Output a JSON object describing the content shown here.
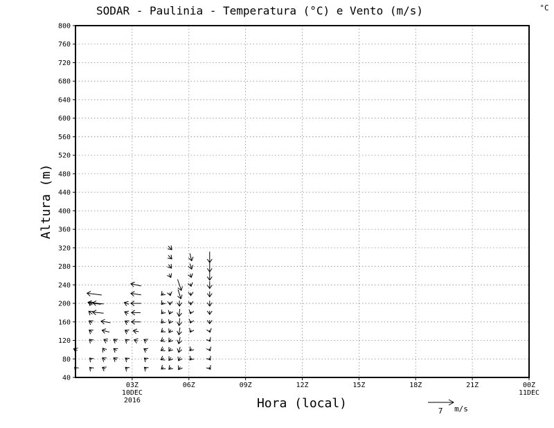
{
  "chart_data": {
    "type": "vector",
    "title": "SODAR - Paulinia - Temperatura (°C) e Vento (m/s)",
    "corner_unit": "°C",
    "xlabel": "Hora (local)",
    "ylabel": "Altura (m)",
    "xlim_hours": [
      0,
      24
    ],
    "ylim": [
      40,
      800
    ],
    "y_ticks": [
      40,
      80,
      120,
      160,
      200,
      240,
      280,
      320,
      360,
      400,
      440,
      480,
      520,
      560,
      600,
      640,
      680,
      720,
      760,
      800
    ],
    "y_tick_labels": [
      "40",
      "80",
      "120",
      "160",
      "200",
      "240",
      "280",
      "320",
      "360",
      "400",
      "440",
      "480",
      "520",
      "560",
      "600",
      "640",
      "680",
      "720",
      "760",
      "800"
    ],
    "x_ticks": [
      {
        "hour": 3,
        "label": "03Z",
        "sub1": "10DEC",
        "sub2": "2016"
      },
      {
        "hour": 6,
        "label": "06Z",
        "sub1": "",
        "sub2": ""
      },
      {
        "hour": 9,
        "label": "09Z",
        "sub1": "",
        "sub2": ""
      },
      {
        "hour": 12,
        "label": "12Z",
        "sub1": "",
        "sub2": ""
      },
      {
        "hour": 15,
        "label": "15Z",
        "sub1": "",
        "sub2": ""
      },
      {
        "hour": 18,
        "label": "18Z",
        "sub1": "",
        "sub2": ""
      },
      {
        "hour": 21,
        "label": "21Z",
        "sub1": "",
        "sub2": ""
      },
      {
        "hour": 24,
        "label": "00Z",
        "sub1": "11DEC",
        "sub2": ""
      }
    ],
    "grid": true,
    "reference_vector": {
      "value": 7,
      "label": "7",
      "unit": "m/s",
      "direction": "east"
    },
    "vectors": [
      {
        "hour": 0.0,
        "height": 100,
        "u": -1.0,
        "v": 0.5
      },
      {
        "hour": 0.0,
        "height": 60,
        "u": -0.5,
        "v": 0.5
      },
      {
        "hour": 0.8,
        "height": 200,
        "u": -1.0,
        "v": 0.8
      },
      {
        "hour": 0.8,
        "height": 180,
        "u": -1.0,
        "v": 0.8
      },
      {
        "hour": 0.8,
        "height": 160,
        "u": -0.8,
        "v": 0.6
      },
      {
        "hour": 0.8,
        "height": 140,
        "u": -0.8,
        "v": 0.6
      },
      {
        "hour": 0.8,
        "height": 120,
        "u": -0.6,
        "v": 0.6
      },
      {
        "hour": 0.8,
        "height": 80,
        "u": -0.5,
        "v": 0.5
      },
      {
        "hour": 0.8,
        "height": 60,
        "u": -0.5,
        "v": 0.5
      },
      {
        "hour": 1.0,
        "height": 220,
        "u": -4.0,
        "v": 0.5
      },
      {
        "hour": 1.0,
        "height": 200,
        "u": -3.5,
        "v": 0.5
      },
      {
        "hour": 1.2,
        "height": 200,
        "u": -3.0,
        "v": 0.3
      },
      {
        "hour": 1.2,
        "height": 180,
        "u": -3.0,
        "v": 0.3
      },
      {
        "hour": 1.5,
        "height": 100,
        "u": -0.6,
        "v": 0.8
      },
      {
        "hour": 1.5,
        "height": 80,
        "u": -0.8,
        "v": 0.6
      },
      {
        "hour": 1.5,
        "height": 60,
        "u": -0.8,
        "v": 0.5
      },
      {
        "hour": 1.6,
        "height": 160,
        "u": -2.5,
        "v": 0.4
      },
      {
        "hour": 1.6,
        "height": 140,
        "u": -2.0,
        "v": 0.5
      },
      {
        "hour": 1.6,
        "height": 120,
        "u": -1.0,
        "v": 0.5
      },
      {
        "hour": 2.1,
        "height": 120,
        "u": -0.8,
        "v": 0.6
      },
      {
        "hour": 2.1,
        "height": 100,
        "u": -0.8,
        "v": 0.6
      },
      {
        "hour": 2.1,
        "height": 80,
        "u": -0.8,
        "v": 0.6
      },
      {
        "hour": 2.7,
        "height": 200,
        "u": -1.2,
        "v": 0.5
      },
      {
        "hour": 2.7,
        "height": 180,
        "u": -1.0,
        "v": 0.5
      },
      {
        "hour": 2.7,
        "height": 160,
        "u": -0.8,
        "v": 0.5
      },
      {
        "hour": 2.7,
        "height": 140,
        "u": -0.8,
        "v": 0.5
      },
      {
        "hour": 2.7,
        "height": 120,
        "u": -0.6,
        "v": 0.5
      },
      {
        "hour": 2.7,
        "height": 80,
        "u": -0.6,
        "v": 0.5
      },
      {
        "hour": 2.7,
        "height": 60,
        "u": -0.6,
        "v": 0.5
      },
      {
        "hour": 3.2,
        "height": 240,
        "u": -2.8,
        "v": 0.6
      },
      {
        "hour": 3.2,
        "height": 220,
        "u": -2.8,
        "v": 0.4
      },
      {
        "hour": 3.2,
        "height": 200,
        "u": -2.8,
        "v": 0.0
      },
      {
        "hour": 3.2,
        "height": 180,
        "u": -2.5,
        "v": 0.0
      },
      {
        "hour": 3.2,
        "height": 160,
        "u": -2.5,
        "v": 0.0
      },
      {
        "hour": 3.2,
        "height": 140,
        "u": -1.5,
        "v": 0.3
      },
      {
        "hour": 3.2,
        "height": 120,
        "u": -1.0,
        "v": 0.3
      },
      {
        "hour": 3.7,
        "height": 120,
        "u": -0.8,
        "v": 0.5
      },
      {
        "hour": 3.7,
        "height": 100,
        "u": -0.8,
        "v": 0.5
      },
      {
        "hour": 3.7,
        "height": 80,
        "u": -0.6,
        "v": 0.5
      },
      {
        "hour": 3.7,
        "height": 60,
        "u": -0.6,
        "v": 0.5
      },
      {
        "hour": 4.6,
        "height": 220,
        "u": -0.6,
        "v": -0.6
      },
      {
        "hour": 4.6,
        "height": 200,
        "u": -0.5,
        "v": -0.6
      },
      {
        "hour": 4.6,
        "height": 180,
        "u": -0.5,
        "v": -0.6
      },
      {
        "hour": 4.6,
        "height": 160,
        "u": -0.6,
        "v": -0.6
      },
      {
        "hour": 4.6,
        "height": 140,
        "u": -0.6,
        "v": -0.5
      },
      {
        "hour": 4.6,
        "height": 120,
        "u": -0.8,
        "v": -0.5
      },
      {
        "hour": 4.6,
        "height": 100,
        "u": -0.8,
        "v": -0.5
      },
      {
        "hour": 4.6,
        "height": 80,
        "u": -0.8,
        "v": -0.5
      },
      {
        "hour": 4.6,
        "height": 60,
        "u": -0.6,
        "v": -0.5
      },
      {
        "hour": 5.0,
        "height": 320,
        "u": 1.0,
        "v": -1.0
      },
      {
        "hour": 5.0,
        "height": 300,
        "u": 1.0,
        "v": -1.0
      },
      {
        "hour": 5.0,
        "height": 280,
        "u": 0.8,
        "v": -1.0
      },
      {
        "hour": 5.0,
        "height": 260,
        "u": 0.5,
        "v": -1.0
      },
      {
        "hour": 5.0,
        "height": 220,
        "u": 0.2,
        "v": -0.8
      },
      {
        "hour": 5.0,
        "height": 200,
        "u": 0.0,
        "v": -0.8
      },
      {
        "hour": 5.0,
        "height": 180,
        "u": -0.3,
        "v": -0.8
      },
      {
        "hour": 5.0,
        "height": 160,
        "u": -0.4,
        "v": -0.8
      },
      {
        "hour": 5.0,
        "height": 140,
        "u": -0.5,
        "v": -0.8
      },
      {
        "hour": 5.0,
        "height": 120,
        "u": -0.6,
        "v": -0.8
      },
      {
        "hour": 5.0,
        "height": 100,
        "u": -0.6,
        "v": -0.8
      },
      {
        "hour": 5.0,
        "height": 80,
        "u": -0.6,
        "v": -0.8
      },
      {
        "hour": 5.0,
        "height": 60,
        "u": -0.6,
        "v": -0.6
      },
      {
        "hour": 5.5,
        "height": 240,
        "u": 1.0,
        "v": -3.0
      },
      {
        "hour": 5.5,
        "height": 220,
        "u": 0.8,
        "v": -2.5
      },
      {
        "hour": 5.5,
        "height": 200,
        "u": 0.0,
        "v": -1.5
      },
      {
        "hour": 5.5,
        "height": 180,
        "u": -0.2,
        "v": -2.0
      },
      {
        "hour": 5.5,
        "height": 160,
        "u": -0.2,
        "v": -2.0
      },
      {
        "hour": 5.5,
        "height": 140,
        "u": -0.3,
        "v": -2.0
      },
      {
        "hour": 5.5,
        "height": 120,
        "u": -0.4,
        "v": -1.8
      },
      {
        "hour": 5.5,
        "height": 100,
        "u": -0.4,
        "v": -1.5
      },
      {
        "hour": 5.5,
        "height": 80,
        "u": -0.5,
        "v": -1.0
      },
      {
        "hour": 5.5,
        "height": 60,
        "u": -0.5,
        "v": -0.8
      },
      {
        "hour": 6.1,
        "height": 300,
        "u": 0.5,
        "v": -2.0
      },
      {
        "hour": 6.1,
        "height": 280,
        "u": 0.5,
        "v": -1.5
      },
      {
        "hour": 6.1,
        "height": 260,
        "u": 0.3,
        "v": -1.0
      },
      {
        "hour": 6.1,
        "height": 240,
        "u": 0.2,
        "v": -0.8
      },
      {
        "hour": 6.1,
        "height": 220,
        "u": 0.0,
        "v": -0.8
      },
      {
        "hour": 6.1,
        "height": 200,
        "u": 0.0,
        "v": -0.8
      },
      {
        "hour": 6.1,
        "height": 180,
        "u": -0.2,
        "v": -0.6
      },
      {
        "hour": 6.1,
        "height": 160,
        "u": -0.2,
        "v": -0.6
      },
      {
        "hour": 6.1,
        "height": 140,
        "u": -0.3,
        "v": -0.6
      },
      {
        "hour": 6.1,
        "height": 100,
        "u": -0.5,
        "v": -0.6
      },
      {
        "hour": 6.1,
        "height": 80,
        "u": -0.5,
        "v": -0.6
      },
      {
        "hour": 7.1,
        "height": 300,
        "u": 0.0,
        "v": -3.0
      },
      {
        "hour": 7.1,
        "height": 280,
        "u": 0.0,
        "v": -3.0
      },
      {
        "hour": 7.1,
        "height": 260,
        "u": 0.0,
        "v": -2.5
      },
      {
        "hour": 7.1,
        "height": 240,
        "u": 0.0,
        "v": -2.0
      },
      {
        "hour": 7.1,
        "height": 220,
        "u": 0.0,
        "v": -1.5
      },
      {
        "hour": 7.1,
        "height": 200,
        "u": 0.0,
        "v": -1.5
      },
      {
        "hour": 7.1,
        "height": 180,
        "u": 0.0,
        "v": -1.0
      },
      {
        "hour": 7.1,
        "height": 160,
        "u": 0.0,
        "v": -1.0
      },
      {
        "hour": 7.1,
        "height": 140,
        "u": 0.2,
        "v": -0.6
      },
      {
        "hour": 7.1,
        "height": 120,
        "u": 0.3,
        "v": -0.5
      },
      {
        "hour": 7.1,
        "height": 100,
        "u": 0.3,
        "v": -0.6
      },
      {
        "hour": 7.1,
        "height": 80,
        "u": 0.4,
        "v": -0.6
      },
      {
        "hour": 7.1,
        "height": 60,
        "u": 0.4,
        "v": -0.6
      }
    ]
  }
}
